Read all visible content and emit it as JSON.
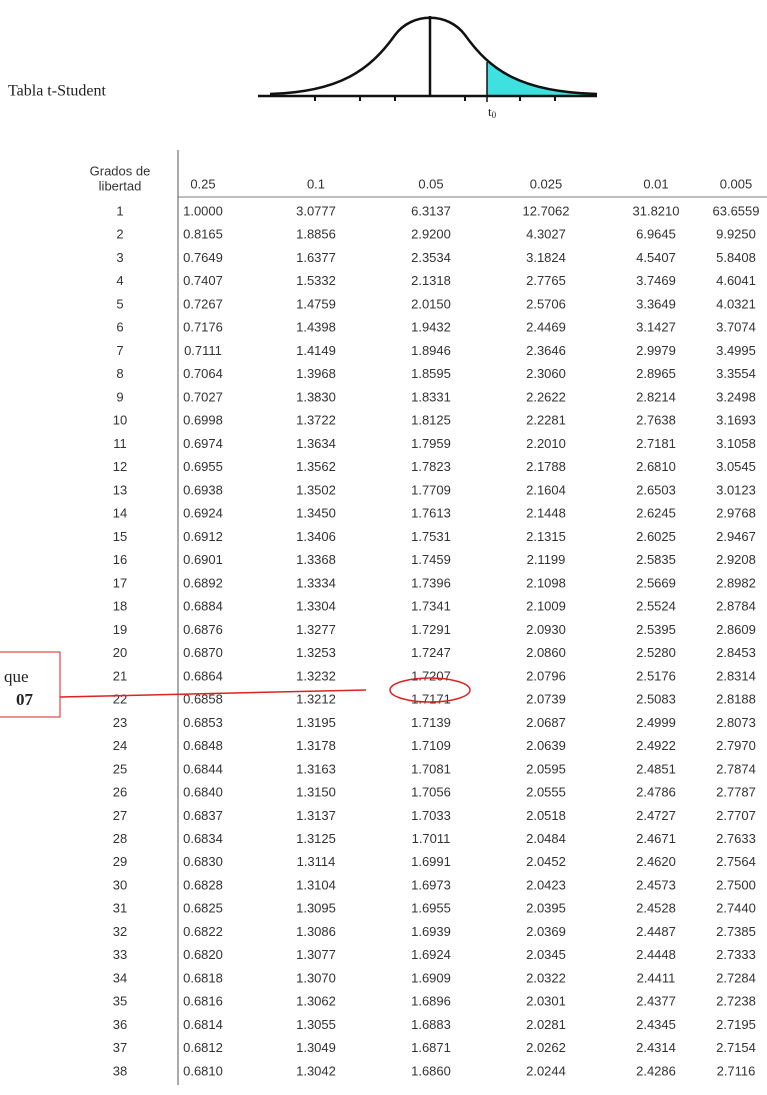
{
  "header": {
    "title": "Tabla t-Student",
    "curve_label": "t",
    "curve_label_sub": "0"
  },
  "annotation": {
    "line1": "que",
    "line2": "07"
  },
  "table": {
    "df_header": [
      "Grados de",
      "libertad"
    ],
    "columns": [
      "0.25",
      "0.1",
      "0.05",
      "0.025",
      "0.01",
      "0.005"
    ],
    "rows": [
      [
        "1",
        "1.0000",
        "3.0777",
        "6.3137",
        "12.7062",
        "31.8210",
        "63.6559"
      ],
      [
        "2",
        "0.8165",
        "1.8856",
        "2.9200",
        "4.3027",
        "6.9645",
        "9.9250"
      ],
      [
        "3",
        "0.7649",
        "1.6377",
        "2.3534",
        "3.1824",
        "4.5407",
        "5.8408"
      ],
      [
        "4",
        "0.7407",
        "1.5332",
        "2.1318",
        "2.7765",
        "3.7469",
        "4.6041"
      ],
      [
        "5",
        "0.7267",
        "1.4759",
        "2.0150",
        "2.5706",
        "3.3649",
        "4.0321"
      ],
      [
        "6",
        "0.7176",
        "1.4398",
        "1.9432",
        "2.4469",
        "3.1427",
        "3.7074"
      ],
      [
        "7",
        "0.7111",
        "1.4149",
        "1.8946",
        "2.3646",
        "2.9979",
        "3.4995"
      ],
      [
        "8",
        "0.7064",
        "1.3968",
        "1.8595",
        "2.3060",
        "2.8965",
        "3.3554"
      ],
      [
        "9",
        "0.7027",
        "1.3830",
        "1.8331",
        "2.2622",
        "2.8214",
        "3.2498"
      ],
      [
        "10",
        "0.6998",
        "1.3722",
        "1.8125",
        "2.2281",
        "2.7638",
        "3.1693"
      ],
      [
        "11",
        "0.6974",
        "1.3634",
        "1.7959",
        "2.2010",
        "2.7181",
        "3.1058"
      ],
      [
        "12",
        "0.6955",
        "1.3562",
        "1.7823",
        "2.1788",
        "2.6810",
        "3.0545"
      ],
      [
        "13",
        "0.6938",
        "1.3502",
        "1.7709",
        "2.1604",
        "2.6503",
        "3.0123"
      ],
      [
        "14",
        "0.6924",
        "1.3450",
        "1.7613",
        "2.1448",
        "2.6245",
        "2.9768"
      ],
      [
        "15",
        "0.6912",
        "1.3406",
        "1.7531",
        "2.1315",
        "2.6025",
        "2.9467"
      ],
      [
        "16",
        "0.6901",
        "1.3368",
        "1.7459",
        "2.1199",
        "2.5835",
        "2.9208"
      ],
      [
        "17",
        "0.6892",
        "1.3334",
        "1.7396",
        "2.1098",
        "2.5669",
        "2.8982"
      ],
      [
        "18",
        "0.6884",
        "1.3304",
        "1.7341",
        "2.1009",
        "2.5524",
        "2.8784"
      ],
      [
        "19",
        "0.6876",
        "1.3277",
        "1.7291",
        "2.0930",
        "2.5395",
        "2.8609"
      ],
      [
        "20",
        "0.6870",
        "1.3253",
        "1.7247",
        "2.0860",
        "2.5280",
        "2.8453"
      ],
      [
        "21",
        "0.6864",
        "1.3232",
        "1.7207",
        "2.0796",
        "2.5176",
        "2.8314"
      ],
      [
        "22",
        "0.6858",
        "1.3212",
        "1.7171",
        "2.0739",
        "2.5083",
        "2.8188"
      ],
      [
        "23",
        "0.6853",
        "1.3195",
        "1.7139",
        "2.0687",
        "2.4999",
        "2.8073"
      ],
      [
        "24",
        "0.6848",
        "1.3178",
        "1.7109",
        "2.0639",
        "2.4922",
        "2.7970"
      ],
      [
        "25",
        "0.6844",
        "1.3163",
        "1.7081",
        "2.0595",
        "2.4851",
        "2.7874"
      ],
      [
        "26",
        "0.6840",
        "1.3150",
        "1.7056",
        "2.0555",
        "2.4786",
        "2.7787"
      ],
      [
        "27",
        "0.6837",
        "1.3137",
        "1.7033",
        "2.0518",
        "2.4727",
        "2.7707"
      ],
      [
        "28",
        "0.6834",
        "1.3125",
        "1.7011",
        "2.0484",
        "2.4671",
        "2.7633"
      ],
      [
        "29",
        "0.6830",
        "1.3114",
        "1.6991",
        "2.0452",
        "2.4620",
        "2.7564"
      ],
      [
        "30",
        "0.6828",
        "1.3104",
        "1.6973",
        "2.0423",
        "2.4573",
        "2.7500"
      ],
      [
        "31",
        "0.6825",
        "1.3095",
        "1.6955",
        "2.0395",
        "2.4528",
        "2.7440"
      ],
      [
        "32",
        "0.6822",
        "1.3086",
        "1.6939",
        "2.0369",
        "2.4487",
        "2.7385"
      ],
      [
        "33",
        "0.6820",
        "1.3077",
        "1.6924",
        "2.0345",
        "2.4448",
        "2.7333"
      ],
      [
        "34",
        "0.6818",
        "1.3070",
        "1.6909",
        "2.0322",
        "2.4411",
        "2.7284"
      ],
      [
        "35",
        "0.6816",
        "1.3062",
        "1.6896",
        "2.0301",
        "2.4377",
        "2.7238"
      ],
      [
        "36",
        "0.6814",
        "1.3055",
        "1.6883",
        "2.0281",
        "2.4345",
        "2.7195"
      ],
      [
        "37",
        "0.6812",
        "1.3049",
        "1.6871",
        "2.0262",
        "2.4314",
        "2.7154"
      ],
      [
        "38",
        "0.6810",
        "1.3042",
        "1.6860",
        "2.0244",
        "2.4286",
        "2.7116"
      ]
    ]
  }
}
